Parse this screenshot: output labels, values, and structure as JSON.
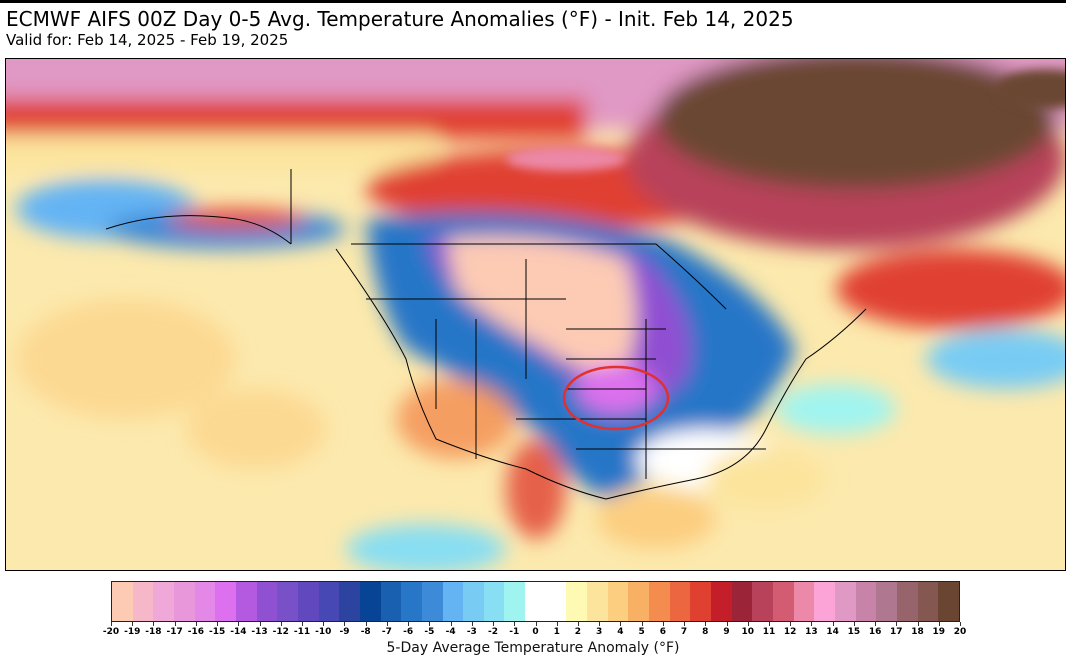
{
  "title": "ECMWF AIFS 00Z Day 0-5 Avg. Temperature Anomalies (°F) - Init. Feb 14, 2025",
  "subtitle": "Valid for: Feb 14, 2025 - Feb 19, 2025",
  "colorbar": {
    "label": "5-Day Average Temperature Anomaly (°F)",
    "ticks": [
      "-20",
      "-19",
      "-18",
      "-17",
      "-16",
      "-15",
      "-14",
      "-13",
      "-12",
      "-11",
      "-10",
      "-9",
      "-8",
      "-7",
      "-6",
      "-5",
      "-4",
      "-3",
      "-2",
      "-1",
      "0",
      "1",
      "2",
      "3",
      "4",
      "5",
      "6",
      "7",
      "8",
      "9",
      "10",
      "11",
      "12",
      "13",
      "14",
      "15",
      "16",
      "17",
      "18",
      "19",
      "20"
    ],
    "colors": [
      "#fdcbb4",
      "#f6b8c8",
      "#f0a8d8",
      "#e898da",
      "#e488e8",
      "#dd70ee",
      "#b45ae0",
      "#9050d2",
      "#7850c8",
      "#6248be",
      "#4848b4",
      "#2c44a0",
      "#084496",
      "#1a60b0",
      "#2876c8",
      "#3c8ad8",
      "#64b4f4",
      "#78ccf4",
      "#88def2",
      "#a0f4f0",
      "#ffffff",
      "#ffffff",
      "#fefab4",
      "#fce49c",
      "#fcce80",
      "#f8b064",
      "#f48c50",
      "#ec6640",
      "#e04030",
      "#c41e2a",
      "#9c2438",
      "#b8425a",
      "#d45c72",
      "#ec88a8",
      "#fca4d8",
      "#e098c4",
      "#c884a8",
      "#b07890",
      "#98646c",
      "#845850",
      "#6a4632"
    ]
  },
  "annotation": {
    "type": "circle",
    "color": "#e03030",
    "region": "Kansas / Missouri"
  }
}
